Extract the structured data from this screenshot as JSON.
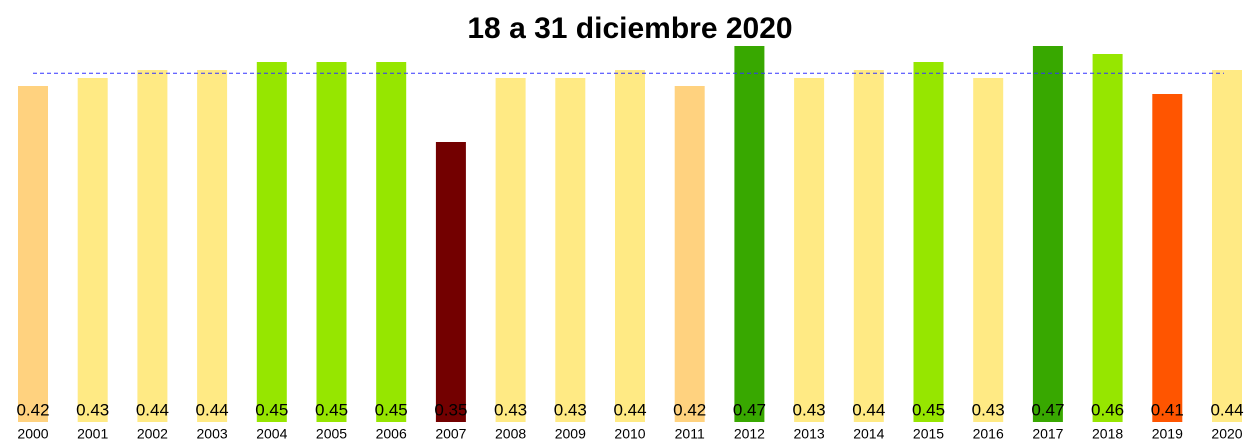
{
  "chart_data": {
    "type": "bar",
    "title": "18 a 31 diciembre 2020",
    "categories": [
      "2000",
      "2001",
      "2002",
      "2003",
      "2004",
      "2005",
      "2006",
      "2007",
      "2008",
      "2009",
      "2010",
      "2011",
      "2012",
      "2013",
      "2014",
      "2015",
      "2016",
      "2017",
      "2018",
      "2019",
      "2020"
    ],
    "values": [
      0.42,
      0.43,
      0.44,
      0.44,
      0.45,
      0.45,
      0.45,
      0.35,
      0.43,
      0.43,
      0.44,
      0.42,
      0.47,
      0.43,
      0.44,
      0.45,
      0.43,
      0.47,
      0.46,
      0.41,
      0.44
    ],
    "colors": [
      "#ffd27f",
      "#ffea84",
      "#ffea84",
      "#ffea84",
      "#96e600",
      "#96e600",
      "#96e600",
      "#730000",
      "#ffea84",
      "#ffea84",
      "#ffea84",
      "#ffd27f",
      "#38a800",
      "#ffea84",
      "#ffea84",
      "#96e600",
      "#ffea84",
      "#38a800",
      "#96e600",
      "#ff5500",
      "#ffea84"
    ],
    "ylim": [
      0,
      0.48
    ],
    "reference_line": 0.436,
    "reference_color": "#3333ff"
  }
}
